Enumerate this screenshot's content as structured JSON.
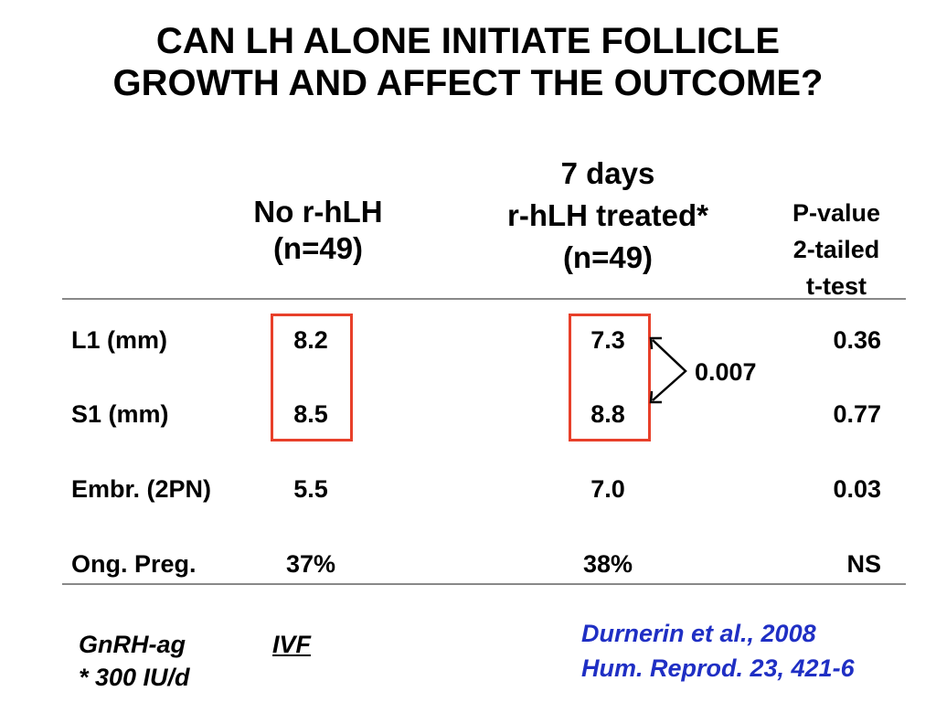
{
  "slide": {
    "title_line1": "CAN LH ALONE INITIATE FOLLICLE",
    "title_line2": "GROWTH AND AFFECT THE OUTCOME?"
  },
  "table": {
    "col1": {
      "line1": "No r-hLH",
      "line2": "(n=49)"
    },
    "col2": {
      "line1": "7 days",
      "line2": "r-hLH treated*",
      "line3": "(n=49)"
    },
    "col3": {
      "line1": "P-value",
      "line2": "2-tailed",
      "line3": "t-test"
    },
    "rows": [
      {
        "label": "L1 (mm)",
        "no_lh": "8.2",
        "lh": "7.3",
        "p": "0.36"
      },
      {
        "label": "S1 (mm)",
        "no_lh": "8.5",
        "lh": "8.8",
        "p": "0.77"
      },
      {
        "label": "Embr. (2PN)",
        "no_lh": "5.5",
        "lh": "7.0",
        "p": "0.03"
      },
      {
        "label": "Ong. Preg.",
        "no_lh": "37%",
        "lh": "38%",
        "p": "NS"
      }
    ],
    "bracket_p": "0.007",
    "highlight_color": "#e8402a"
  },
  "footer": {
    "protocol": "GnRH-ag",
    "method": "IVF",
    "dose": "* 300 IU/d",
    "citation_line1": "Durnerin et al., 2008",
    "citation_line2": "Hum. Reprod. 23, 421-6",
    "citation_color": "#1f2fc4"
  }
}
